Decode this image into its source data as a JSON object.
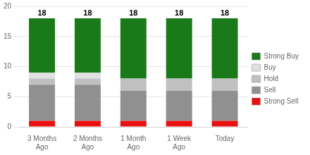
{
  "chart_data": {
    "type": "bar",
    "stacked": true,
    "categories": [
      "3 Months\nAgo",
      "2 Months\nAgo",
      "1 Month\nAgo",
      "1 Week\nAgo",
      "Today"
    ],
    "series": [
      {
        "name": "Strong Sell",
        "color": "#e81010",
        "values": [
          1,
          1,
          1,
          1,
          1
        ]
      },
      {
        "name": "Sell",
        "color": "#909090",
        "values": [
          6,
          6,
          5,
          5,
          5
        ]
      },
      {
        "name": "Hold",
        "color": "#c0c0c0",
        "values": [
          1,
          1,
          2,
          2,
          2
        ]
      },
      {
        "name": "Buy",
        "color": "#e0e0e0",
        "values": [
          1,
          1,
          0,
          0,
          0
        ]
      },
      {
        "name": "Strong Buy",
        "color": "#1a7a1a",
        "values": [
          9,
          9,
          10,
          10,
          10
        ]
      }
    ],
    "totals": [
      18,
      18,
      18,
      18,
      18
    ],
    "ylim": [
      0,
      20
    ],
    "yticks": [
      0,
      5,
      10,
      15,
      20
    ],
    "grid": true,
    "legend": "right"
  }
}
